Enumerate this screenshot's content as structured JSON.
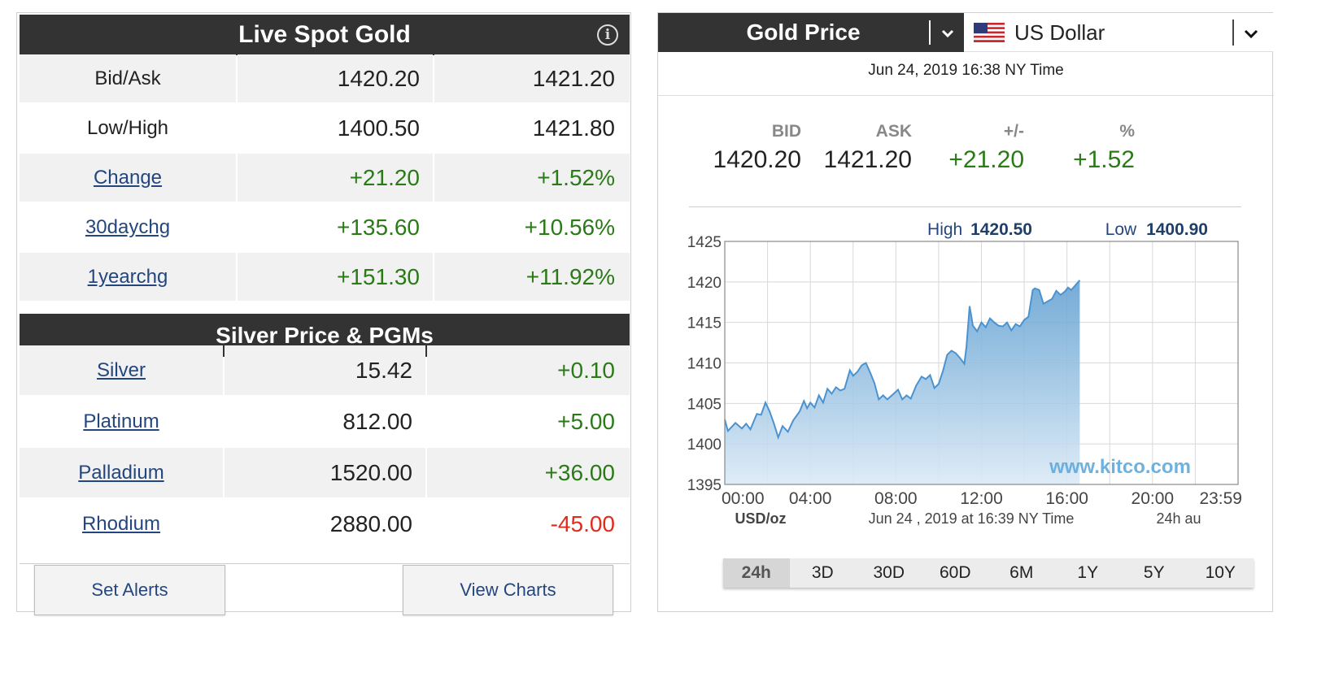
{
  "live_spot_gold": {
    "title": "Live Spot Gold",
    "info_icon": "i",
    "rows": [
      {
        "label": "Bid/Ask",
        "is_link": false,
        "v1": "1420.20",
        "v2": "1421.20",
        "color": "neutral"
      },
      {
        "label": "Low/High",
        "is_link": false,
        "v1": "1400.50",
        "v2": "1421.80",
        "color": "neutral"
      },
      {
        "label": "Change",
        "is_link": true,
        "v1": "+21.20",
        "v2": "+1.52%",
        "color": "positive"
      },
      {
        "label": "30daychg",
        "is_link": true,
        "v1": "+135.60",
        "v2": "+10.56%",
        "color": "positive"
      },
      {
        "label": "1yearchg",
        "is_link": true,
        "v1": "+151.30",
        "v2": "+11.92%",
        "color": "positive"
      }
    ]
  },
  "silver_pgms": {
    "title": "Silver Price & PGMs",
    "rows": [
      {
        "label": "Silver",
        "price": "15.42",
        "change": "+0.10",
        "color": "positive"
      },
      {
        "label": "Platinum",
        "price": "812.00",
        "change": "+5.00",
        "color": "positive"
      },
      {
        "label": "Palladium",
        "price": "1520.00",
        "change": "+36.00",
        "color": "positive"
      },
      {
        "label": "Rhodium",
        "price": "2880.00",
        "change": "-45.00",
        "color": "negative"
      }
    ]
  },
  "buttons": {
    "set_alerts": "Set Alerts",
    "view_charts": "View Charts"
  },
  "gold_price": {
    "title": "Gold Price",
    "currency": "US Dollar",
    "timestamp": "Jun 24, 2019 16:38 NY Time",
    "quote": {
      "bid_label": "BID",
      "bid": "1420.20",
      "ask_label": "ASK",
      "ask": "1421.20",
      "chg_label": "+/-",
      "chg": "+21.20",
      "pct_label": "%",
      "pct": "+1.52"
    },
    "ranges": [
      "24h",
      "3D",
      "30D",
      "60D",
      "6M",
      "1Y",
      "5Y",
      "10Y"
    ],
    "active_range": "24h"
  },
  "colors": {
    "header_bg": "#333333",
    "positive": "#2a7a17",
    "negative": "#e12b1d",
    "link": "#24467e",
    "chart_line": "#4a93d0",
    "high_low_value": "#1f3f6a"
  },
  "chart_data": {
    "type": "area",
    "high_label": "High",
    "high": "1420.50",
    "low_label": "Low",
    "low": "1400.90",
    "ylim": [
      1395,
      1425
    ],
    "y_ticks": [
      "1425",
      "1420",
      "1415",
      "1410",
      "1405",
      "1400",
      "1395"
    ],
    "x_ticks": [
      "00:00",
      "04:00",
      "08:00",
      "12:00",
      "16:00",
      "20:00",
      "23:59"
    ],
    "x_tick_hours": [
      0,
      4,
      8,
      12,
      16,
      20,
      23.98
    ],
    "xlabel_left": "USD/oz",
    "xlabel_center": "Jun 24 , 2019 at 16:39 NY Time",
    "xlabel_right": "24h au",
    "watermark": "www.kitco.com",
    "x_hours": [
      0,
      0.15,
      0.5,
      0.8,
      1.0,
      1.2,
      1.5,
      1.7,
      1.9,
      2.1,
      2.3,
      2.5,
      2.7,
      2.95,
      3.2,
      3.5,
      3.7,
      3.85,
      4.0,
      4.2,
      4.4,
      4.6,
      4.8,
      5.0,
      5.2,
      5.4,
      5.6,
      5.85,
      6.0,
      6.2,
      6.4,
      6.6,
      6.8,
      7.0,
      7.2,
      7.4,
      7.6,
      7.9,
      8.1,
      8.3,
      8.5,
      8.7,
      8.95,
      9.2,
      9.4,
      9.6,
      9.8,
      10.0,
      10.2,
      10.4,
      10.6,
      10.8,
      11.0,
      11.2,
      11.3,
      11.45,
      11.6,
      11.8,
      12.0,
      12.2,
      12.4,
      12.6,
      12.8,
      13.0,
      13.2,
      13.4,
      13.6,
      13.8,
      14.0,
      14.2,
      14.4,
      14.5,
      14.7,
      14.9,
      15.1,
      15.3,
      15.5,
      15.7,
      15.9,
      16.05,
      16.2,
      16.4,
      16.6
    ],
    "values": [
      1403.0,
      1401.6,
      1402.6,
      1401.9,
      1402.5,
      1401.8,
      1403.7,
      1403.6,
      1405.1,
      1404.0,
      1402.5,
      1400.8,
      1402.2,
      1401.5,
      1402.9,
      1404.0,
      1405.3,
      1404.4,
      1405.1,
      1404.5,
      1406.0,
      1405.1,
      1406.8,
      1406.2,
      1407.0,
      1406.6,
      1406.8,
      1409.1,
      1408.4,
      1408.9,
      1409.7,
      1410.0,
      1408.8,
      1407.5,
      1405.5,
      1406.0,
      1405.5,
      1406.2,
      1406.7,
      1405.5,
      1406.0,
      1405.6,
      1407.2,
      1408.3,
      1408.0,
      1408.5,
      1406.9,
      1407.4,
      1409.0,
      1411.0,
      1411.5,
      1411.2,
      1410.6,
      1409.9,
      1412.0,
      1417.0,
      1414.6,
      1413.9,
      1415.0,
      1414.4,
      1415.5,
      1415.0,
      1414.6,
      1414.5,
      1415.0,
      1414.0,
      1414.8,
      1414.5,
      1415.3,
      1415.7,
      1419.0,
      1419.2,
      1419.0,
      1417.3,
      1417.6,
      1417.9,
      1418.9,
      1418.4,
      1418.8,
      1419.3,
      1419.0,
      1419.6,
      1420.2
    ]
  }
}
